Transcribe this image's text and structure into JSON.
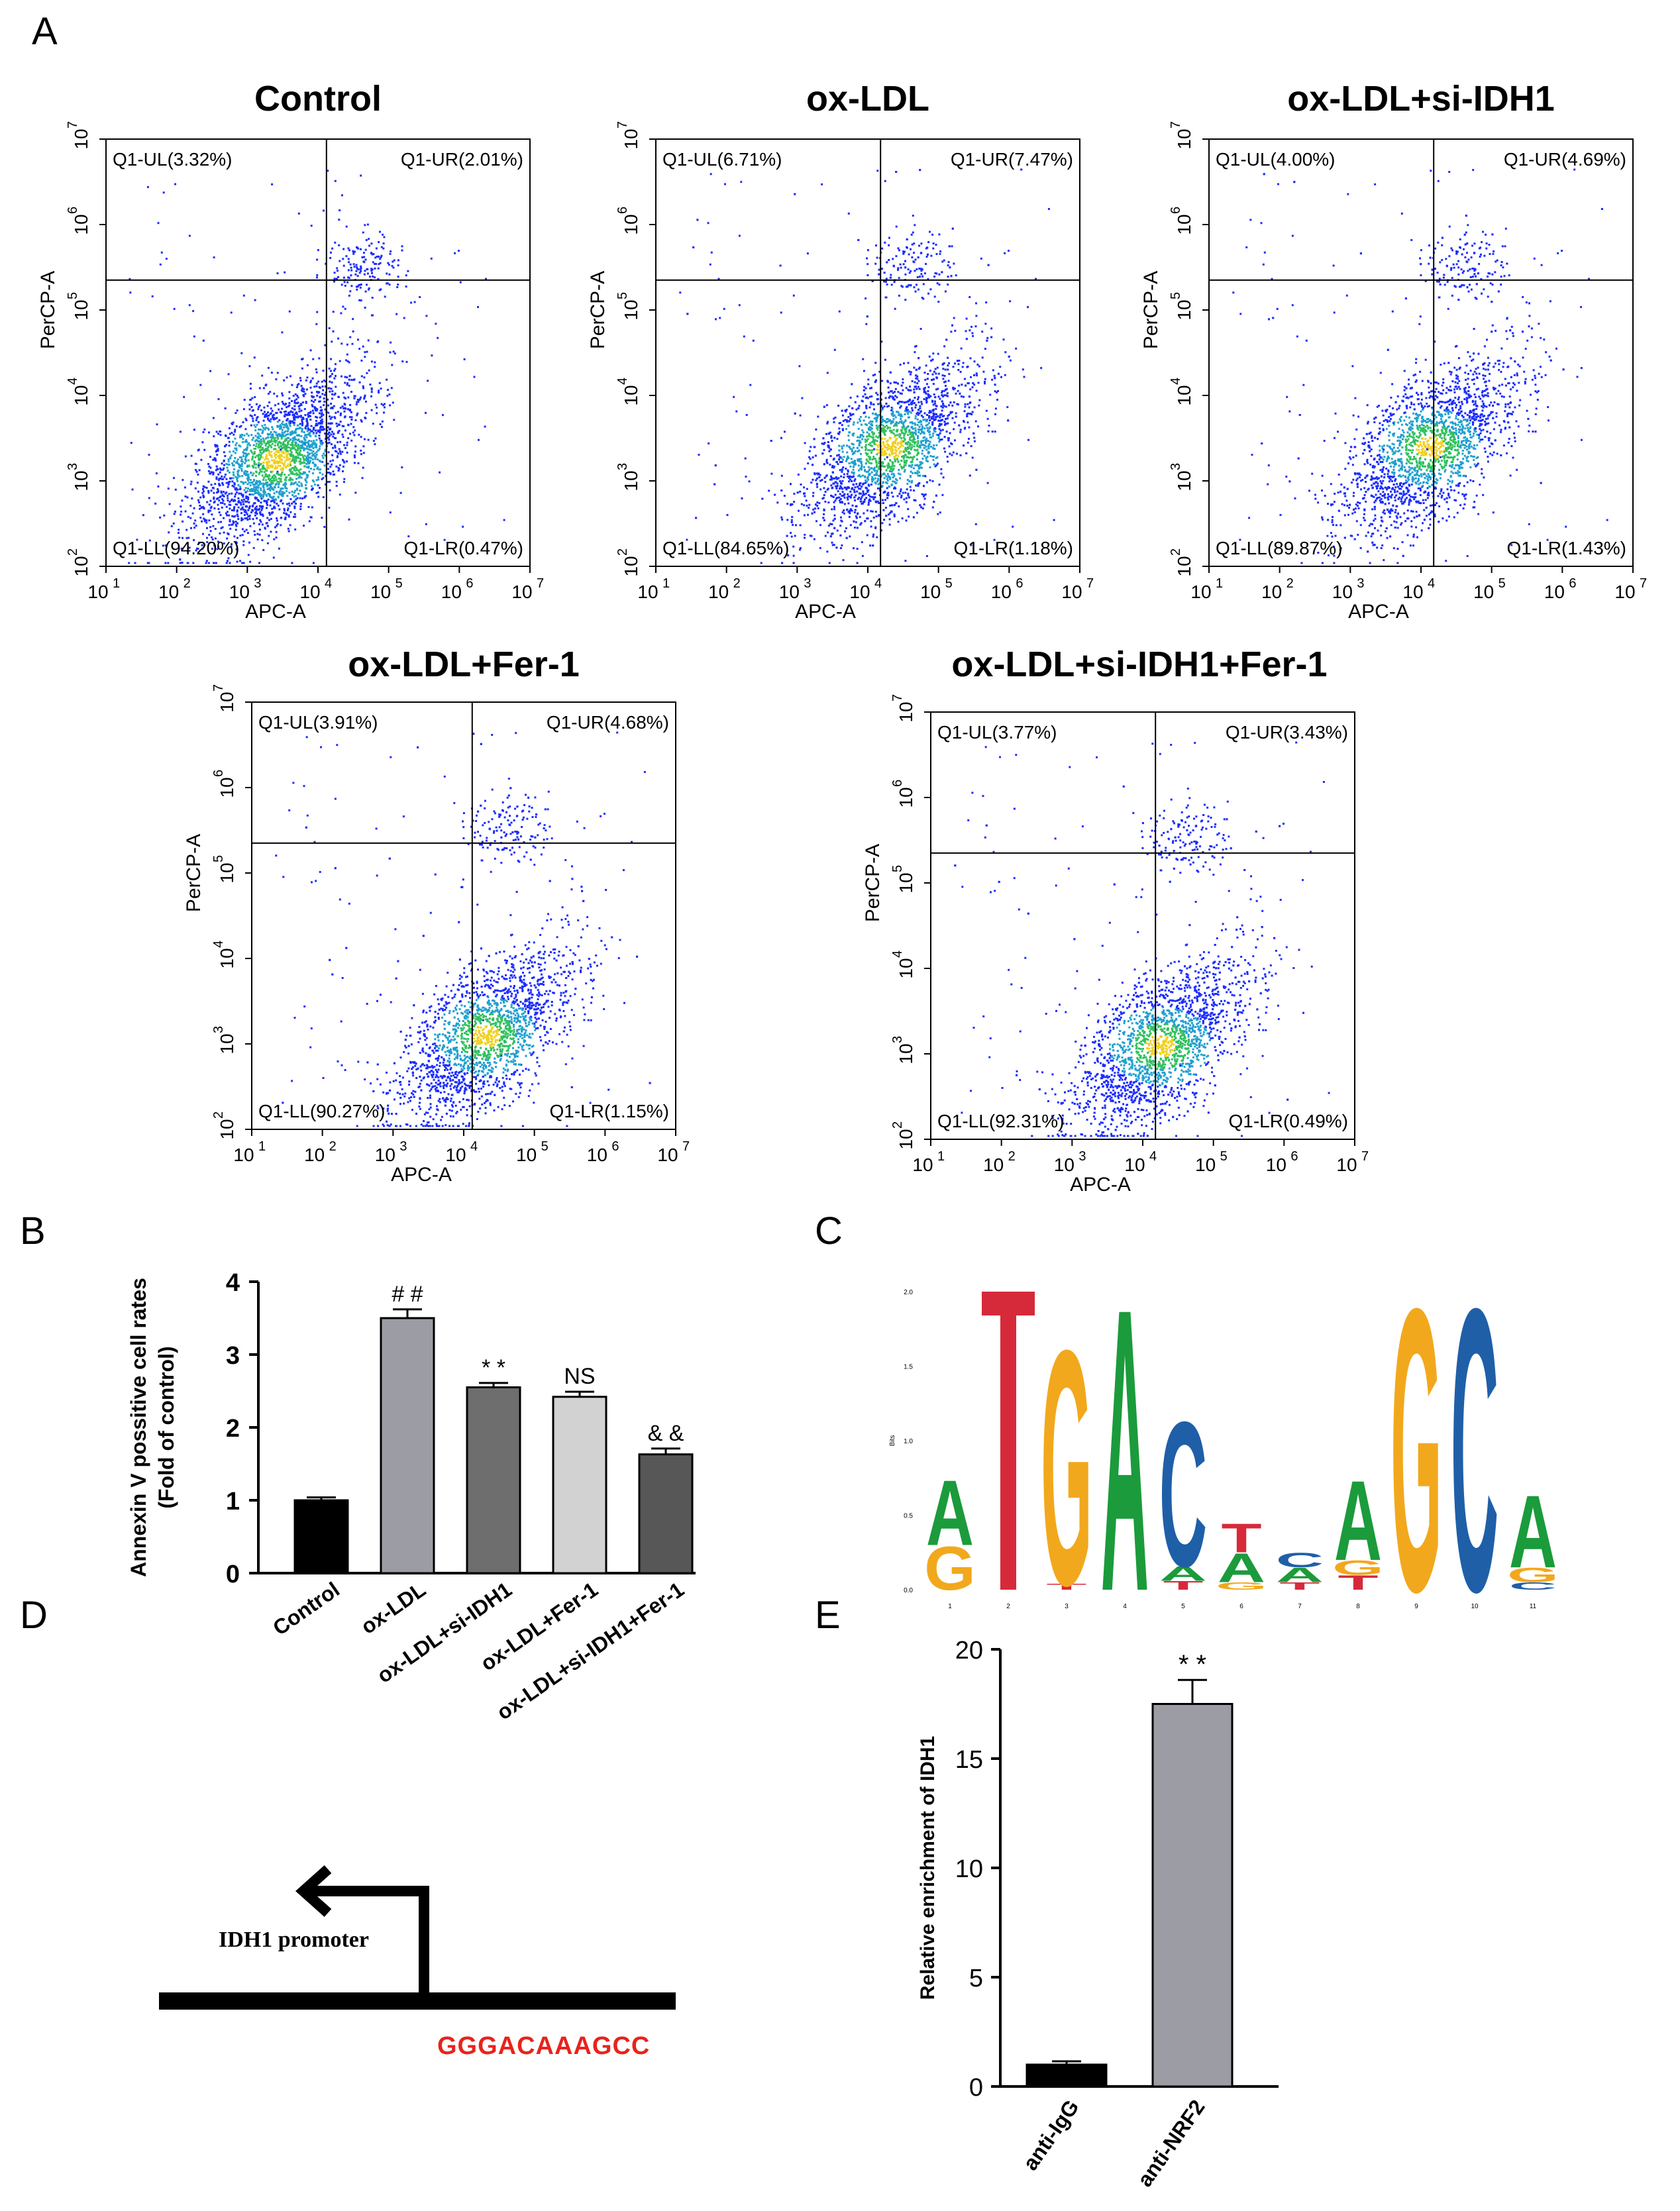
{
  "panels": {
    "A": "A",
    "B": "B",
    "C": "C",
    "D": "D",
    "E": "E"
  },
  "flow": {
    "xlabel": "APC-A",
    "ylabel": "PerCP-A",
    "ticks": [
      "10",
      "10",
      "10",
      "10",
      "10",
      "10",
      "10"
    ],
    "tick_exp": [
      "1",
      "2",
      "3",
      "4",
      "5",
      "6",
      "7"
    ],
    "y_tick_exp": [
      "2",
      "3",
      "4",
      "5",
      "6",
      "7"
    ],
    "plots": [
      {
        "title": "Control",
        "ul": "Q1-UL(3.32%)",
        "ur": "Q1-UR(2.01%)",
        "ll": "Q1-LL(94.20%)",
        "lr": "Q1-LR(0.47%)"
      },
      {
        "title": "ox-LDL",
        "ul": "Q1-UL(6.71%)",
        "ur": "Q1-UR(7.47%)",
        "ll": "Q1-LL(84.65%)",
        "lr": "Q1-LR(1.18%)"
      },
      {
        "title": "ox-LDL+si-IDH1",
        "ul": "Q1-UL(4.00%)",
        "ur": "Q1-UR(4.69%)",
        "ll": "Q1-LL(89.87%)",
        "lr": "Q1-LR(1.43%)"
      },
      {
        "title": "ox-LDL+Fer-1",
        "ul": "Q1-UL(3.91%)",
        "ur": "Q1-UR(4.68%)",
        "ll": "Q1-LL(90.27%)",
        "lr": "Q1-LR(1.15%)"
      },
      {
        "title": "ox-LDL+si-IDH1+Fer-1",
        "ul": "Q1-UL(3.77%)",
        "ur": "Q1-UR(3.43%)",
        "ll": "Q1-LL(92.31%)",
        "lr": "Q1-LR(0.49%)"
      }
    ]
  },
  "chart_data": [
    {
      "type": "bar",
      "title": "",
      "ylabel_line1": "Annexin V possitive cell rates",
      "ylabel_line2": "(Fold of control)",
      "categories": [
        "Control",
        "ox-LDL",
        "ox-LDL+si-IDH1",
        "ox-LDL+Fer-1",
        "ox-LDL+si-IDH1+Fer-1"
      ],
      "values": [
        1.0,
        3.5,
        2.55,
        2.42,
        1.63
      ],
      "errors": [
        0.04,
        0.12,
        0.06,
        0.07,
        0.08
      ],
      "annotations": [
        "",
        "# #",
        "* *",
        "NS",
        "& &"
      ],
      "colors": [
        "#000000",
        "#9c9ca4",
        "#6e6e6e",
        "#d2d2d2",
        "#575757"
      ],
      "yticks": [
        "0",
        "1",
        "2",
        "3",
        "4"
      ],
      "ylim": [
        0,
        4
      ]
    },
    {
      "type": "bar",
      "title": "",
      "ylabel": "Relative enrichment of IDH1",
      "categories": [
        "anti-IgG",
        "anti-NRF2"
      ],
      "values": [
        1.0,
        17.5
      ],
      "errors": [
        0.15,
        1.1
      ],
      "annotations": [
        "",
        "* *"
      ],
      "colors": [
        "#000000",
        "#9c9ca4"
      ],
      "yticks": [
        "0",
        "5",
        "10",
        "15",
        "20"
      ],
      "ylim": [
        0,
        20
      ]
    }
  ],
  "logo": {
    "ylabel": "Bits",
    "yticks": [
      "0.0",
      "0.5",
      "1.0",
      "1.5",
      "2.0"
    ],
    "positions": [
      "1",
      "2",
      "3",
      "4",
      "5",
      "6",
      "7",
      "8",
      "9",
      "10",
      "11"
    ]
  },
  "promoter": {
    "label": "IDH1 promoter",
    "sequence": "GGGACAAAGCC"
  }
}
